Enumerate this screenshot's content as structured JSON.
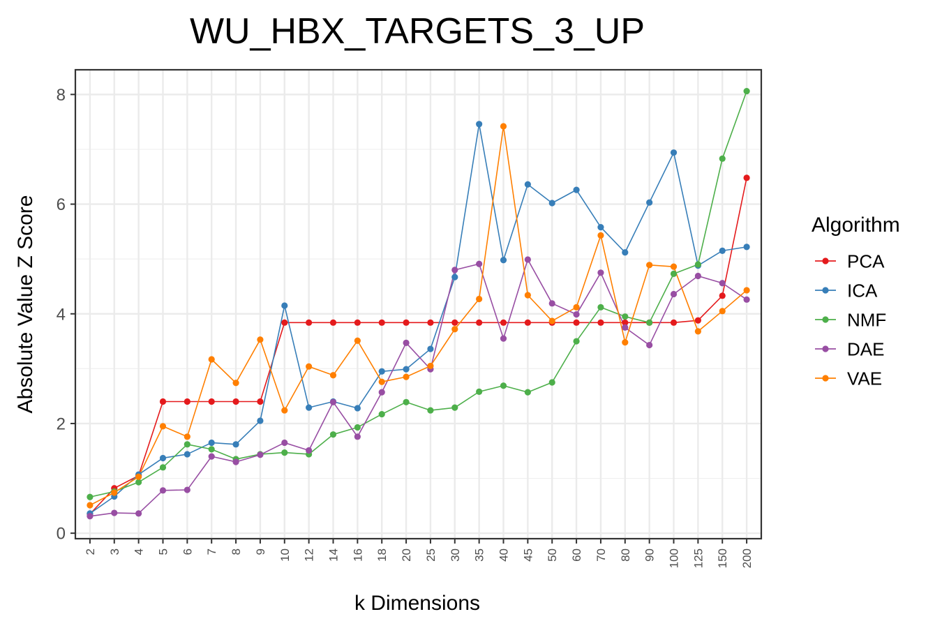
{
  "chart_data": {
    "type": "line",
    "title": "WU_HBX_TARGETS_3_UP",
    "xlabel": "k Dimensions",
    "ylabel": "Absolute Value Z Score",
    "categories": [
      "2",
      "3",
      "4",
      "5",
      "6",
      "7",
      "8",
      "9",
      "10",
      "12",
      "14",
      "16",
      "18",
      "20",
      "25",
      "30",
      "35",
      "40",
      "45",
      "50",
      "60",
      "70",
      "80",
      "90",
      "100",
      "125",
      "150",
      "200"
    ],
    "yticks": [
      0,
      2,
      4,
      6,
      8
    ],
    "ylim": [
      -0.1,
      8.45
    ],
    "grid": true,
    "legend": {
      "title": "Algorithm",
      "position": "right"
    },
    "series": [
      {
        "name": "PCA",
        "color": "#e41a1c",
        "values": [
          0.35,
          0.82,
          1.05,
          2.4,
          2.4,
          2.4,
          2.4,
          2.4,
          3.84,
          3.84,
          3.84,
          3.84,
          3.84,
          3.84,
          3.84,
          3.84,
          3.84,
          3.84,
          3.84,
          3.84,
          3.84,
          3.84,
          3.84,
          3.84,
          3.84,
          3.88,
          4.33,
          6.48
        ]
      },
      {
        "name": "ICA",
        "color": "#377eb8",
        "values": [
          0.36,
          0.67,
          1.07,
          1.37,
          1.44,
          1.65,
          1.62,
          2.05,
          4.15,
          2.29,
          2.4,
          2.28,
          2.95,
          2.99,
          3.36,
          4.67,
          7.46,
          4.98,
          6.36,
          6.02,
          6.26,
          5.58,
          5.12,
          6.03,
          6.94,
          4.88,
          5.15,
          5.22
        ]
      },
      {
        "name": "NMF",
        "color": "#4daf4a",
        "values": [
          0.66,
          0.76,
          0.93,
          1.2,
          1.62,
          1.53,
          1.35,
          1.44,
          1.47,
          1.44,
          1.8,
          1.93,
          2.17,
          2.39,
          2.24,
          2.29,
          2.58,
          2.69,
          2.57,
          2.75,
          3.5,
          4.12,
          3.95,
          3.84,
          4.73,
          4.9,
          6.83,
          8.06
        ]
      },
      {
        "name": "DAE",
        "color": "#984ea3",
        "values": [
          0.31,
          0.37,
          0.36,
          0.78,
          0.79,
          1.4,
          1.3,
          1.43,
          1.65,
          1.51,
          2.39,
          1.76,
          2.57,
          3.47,
          2.99,
          4.8,
          4.91,
          3.55,
          4.99,
          4.19,
          3.99,
          4.75,
          3.75,
          3.43,
          4.36,
          4.69,
          4.56,
          4.26
        ]
      },
      {
        "name": "VAE",
        "color": "#ff7f00",
        "values": [
          0.51,
          0.74,
          1.03,
          1.95,
          1.76,
          3.17,
          2.74,
          3.53,
          2.24,
          3.04,
          2.88,
          3.51,
          2.76,
          2.85,
          3.05,
          3.72,
          4.27,
          7.42,
          4.34,
          3.87,
          4.12,
          5.43,
          3.48,
          4.89,
          4.86,
          3.68,
          4.05,
          4.43
        ]
      }
    ]
  }
}
